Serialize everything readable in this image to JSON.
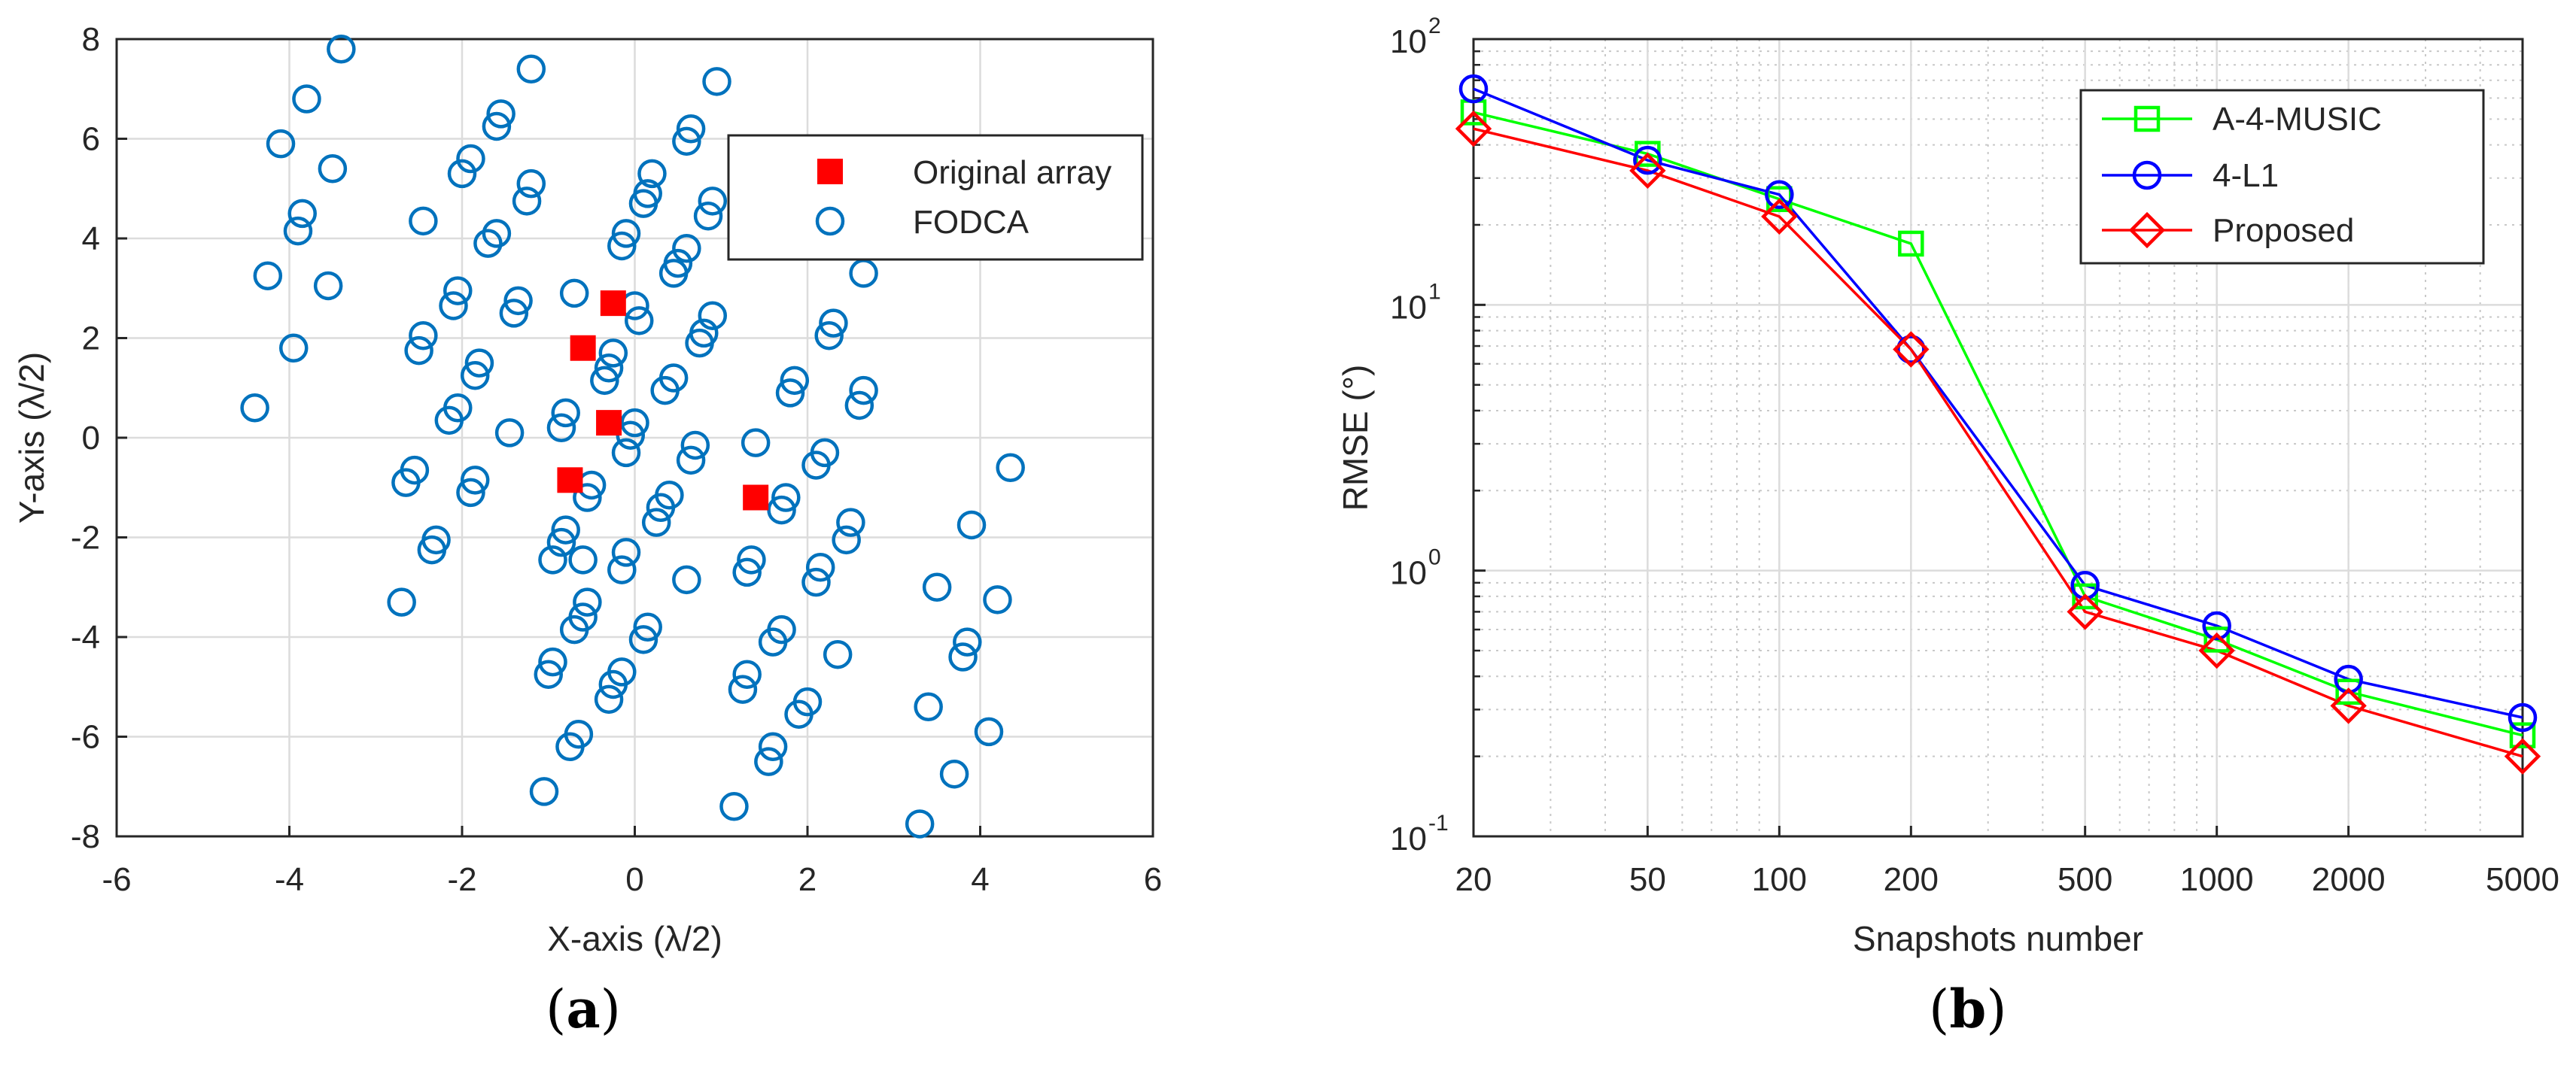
{
  "chart_data": [
    {
      "type": "scatter",
      "panel": "(a)",
      "caption": {
        "open": "(",
        "letter": "a",
        "close": ")"
      },
      "xlabel": "X-axis (λ/2)",
      "ylabel": "Y-axis (λ/2)",
      "xlim": [
        -6,
        6
      ],
      "ylim": [
        -8,
        8
      ],
      "xticks": [
        -6,
        -4,
        -2,
        0,
        2,
        4,
        6
      ],
      "yticks": [
        -8,
        -6,
        -4,
        -2,
        0,
        2,
        4,
        6,
        8
      ],
      "grid": true,
      "legend_position": "top-right",
      "series": [
        {
          "name": "Original array",
          "marker": "filled-square",
          "color": "#ff0000",
          "points": [
            [
              -0.25,
              2.7
            ],
            [
              -0.6,
              1.8
            ],
            [
              -0.3,
              0.3
            ],
            [
              -0.75,
              -0.85
            ],
            [
              1.4,
              -1.2
            ]
          ]
        },
        {
          "name": "FODCA",
          "marker": "open-circle",
          "color": "#0072bd",
          "points": [
            [
              -3.4,
              7.8
            ],
            [
              -3.8,
              6.8
            ],
            [
              -4.1,
              5.9
            ],
            [
              -3.5,
              5.4
            ],
            [
              -3.85,
              4.5
            ],
            [
              -3.9,
              4.15
            ],
            [
              -4.25,
              3.25
            ],
            [
              -3.55,
              3.05
            ],
            [
              -3.95,
              1.8
            ],
            [
              -4.4,
              0.6
            ],
            [
              -1.2,
              7.4
            ],
            [
              -1.55,
              6.5
            ],
            [
              -1.6,
              6.25
            ],
            [
              -1.9,
              5.6
            ],
            [
              -2.0,
              5.3
            ],
            [
              -1.2,
              5.1
            ],
            [
              -1.25,
              4.75
            ],
            [
              -2.45,
              4.35
            ],
            [
              -1.6,
              4.1
            ],
            [
              -1.7,
              3.9
            ],
            [
              -2.05,
              2.95
            ],
            [
              -1.35,
              2.75
            ],
            [
              -1.4,
              2.5
            ],
            [
              -2.1,
              2.65
            ],
            [
              -2.45,
              2.05
            ],
            [
              -2.5,
              1.75
            ],
            [
              -1.8,
              1.5
            ],
            [
              -1.85,
              1.25
            ],
            [
              -2.05,
              0.6
            ],
            [
              -2.15,
              0.35
            ],
            [
              -1.45,
              0.1
            ],
            [
              -2.55,
              -0.65
            ],
            [
              -2.65,
              -0.9
            ],
            [
              -1.85,
              -0.85
            ],
            [
              -1.9,
              -1.1
            ],
            [
              -2.3,
              -2.05
            ],
            [
              -2.35,
              -2.25
            ],
            [
              -2.7,
              -3.3
            ],
            [
              0.95,
              7.15
            ],
            [
              0.65,
              6.2
            ],
            [
              0.6,
              5.95
            ],
            [
              0.2,
              5.3
            ],
            [
              0.15,
              4.9
            ],
            [
              0.1,
              4.7
            ],
            [
              0.9,
              4.75
            ],
            [
              0.85,
              4.45
            ],
            [
              -0.1,
              4.1
            ],
            [
              -0.15,
              3.85
            ],
            [
              0.6,
              3.8
            ],
            [
              0.5,
              3.5
            ],
            [
              0.45,
              3.3
            ],
            [
              0.0,
              2.65
            ],
            [
              0.05,
              2.35
            ],
            [
              0.9,
              2.45
            ],
            [
              0.8,
              2.1
            ],
            [
              0.75,
              1.9
            ],
            [
              -0.7,
              2.9
            ],
            [
              -0.25,
              1.7
            ],
            [
              -0.3,
              1.4
            ],
            [
              -0.35,
              1.15
            ],
            [
              0.45,
              1.2
            ],
            [
              0.35,
              0.95
            ],
            [
              -0.8,
              0.5
            ],
            [
              -0.85,
              0.2
            ],
            [
              0.0,
              0.3
            ],
            [
              -0.05,
              0.05
            ],
            [
              -0.1,
              -0.3
            ],
            [
              0.7,
              -0.15
            ],
            [
              0.65,
              -0.45
            ],
            [
              -0.5,
              -0.95
            ],
            [
              -0.55,
              -1.2
            ],
            [
              0.4,
              -1.15
            ],
            [
              0.3,
              -1.4
            ],
            [
              0.25,
              -1.7
            ],
            [
              -0.8,
              -1.85
            ],
            [
              -0.85,
              -2.1
            ],
            [
              -0.95,
              -2.45
            ],
            [
              -0.6,
              -2.45
            ],
            [
              -0.1,
              -2.3
            ],
            [
              -0.15,
              -2.65
            ],
            [
              0.6,
              -2.85
            ],
            [
              -0.55,
              -3.3
            ],
            [
              -0.6,
              -3.6
            ],
            [
              -0.7,
              -3.85
            ],
            [
              0.15,
              -3.8
            ],
            [
              0.1,
              -4.05
            ],
            [
              -0.95,
              -4.5
            ],
            [
              -1.0,
              -4.75
            ],
            [
              -0.15,
              -4.7
            ],
            [
              -0.25,
              -4.95
            ],
            [
              -0.3,
              -5.25
            ],
            [
              -0.65,
              -5.95
            ],
            [
              -0.75,
              -6.2
            ],
            [
              -1.05,
              -7.1
            ],
            [
              2.65,
              3.3
            ],
            [
              2.3,
              2.3
            ],
            [
              2.25,
              2.05
            ],
            [
              2.65,
              0.95
            ],
            [
              2.6,
              0.65
            ],
            [
              1.85,
              1.15
            ],
            [
              1.8,
              0.9
            ],
            [
              2.2,
              -0.3
            ],
            [
              2.1,
              -0.55
            ],
            [
              1.4,
              -0.1
            ],
            [
              1.75,
              -1.2
            ],
            [
              1.7,
              -1.45
            ],
            [
              2.5,
              -1.7
            ],
            [
              2.45,
              -2.05
            ],
            [
              1.35,
              -2.45
            ],
            [
              1.3,
              -2.7
            ],
            [
              2.15,
              -2.6
            ],
            [
              2.1,
              -2.9
            ],
            [
              1.7,
              -3.85
            ],
            [
              1.6,
              -4.1
            ],
            [
              2.35,
              -4.35
            ],
            [
              1.3,
              -4.75
            ],
            [
              1.25,
              -5.05
            ],
            [
              2.0,
              -5.3
            ],
            [
              1.9,
              -5.55
            ],
            [
              1.6,
              -6.2
            ],
            [
              1.55,
              -6.5
            ],
            [
              1.15,
              -7.4
            ],
            [
              4.35,
              -0.6
            ],
            [
              3.9,
              -1.75
            ],
            [
              3.5,
              -3.0
            ],
            [
              4.2,
              -3.25
            ],
            [
              3.85,
              -4.1
            ],
            [
              3.8,
              -4.4
            ],
            [
              3.4,
              -5.4
            ],
            [
              4.1,
              -5.9
            ],
            [
              3.7,
              -6.75
            ],
            [
              3.3,
              -7.75
            ]
          ]
        }
      ]
    },
    {
      "type": "line",
      "panel": "(b)",
      "caption": {
        "open": "(",
        "letter": "b",
        "close": ")"
      },
      "xlabel": "Snapshots number",
      "ylabel": "RMSE (°)",
      "xscale": "log",
      "yscale": "log",
      "xlim": [
        20,
        5000
      ],
      "ylim": [
        0.1,
        100
      ],
      "xticks": [
        20,
        50,
        100,
        200,
        500,
        1000,
        2000,
        5000
      ],
      "xtick_labels": [
        "20",
        "50",
        "100",
        "200",
        "500",
        "1000",
        "2000",
        "5000"
      ],
      "yticks": [
        0.1,
        1,
        10,
        100
      ],
      "ytick_labels": [
        {
          "base": "10",
          "exp": "-1"
        },
        {
          "base": "10",
          "exp": "0"
        },
        {
          "base": "10",
          "exp": "1"
        },
        {
          "base": "10",
          "exp": "2"
        }
      ],
      "grid": true,
      "legend_position": "top-right",
      "x": [
        20,
        50,
        100,
        200,
        500,
        1000,
        2000,
        5000
      ],
      "series": [
        {
          "name": "A-4-MUSIC",
          "marker": "square",
          "color": "#00ff00",
          "values": [
            53,
            37,
            25,
            17,
            0.8,
            0.55,
            0.35,
            0.24
          ]
        },
        {
          "name": "4-L1",
          "marker": "circle",
          "color": "#0000ff",
          "values": [
            65,
            35,
            26,
            6.8,
            0.88,
            0.62,
            0.39,
            0.28
          ]
        },
        {
          "name": "Proposed",
          "marker": "diamond",
          "color": "#ff0000",
          "values": [
            46,
            32,
            21.5,
            6.8,
            0.7,
            0.5,
            0.31,
            0.2
          ]
        }
      ]
    }
  ]
}
